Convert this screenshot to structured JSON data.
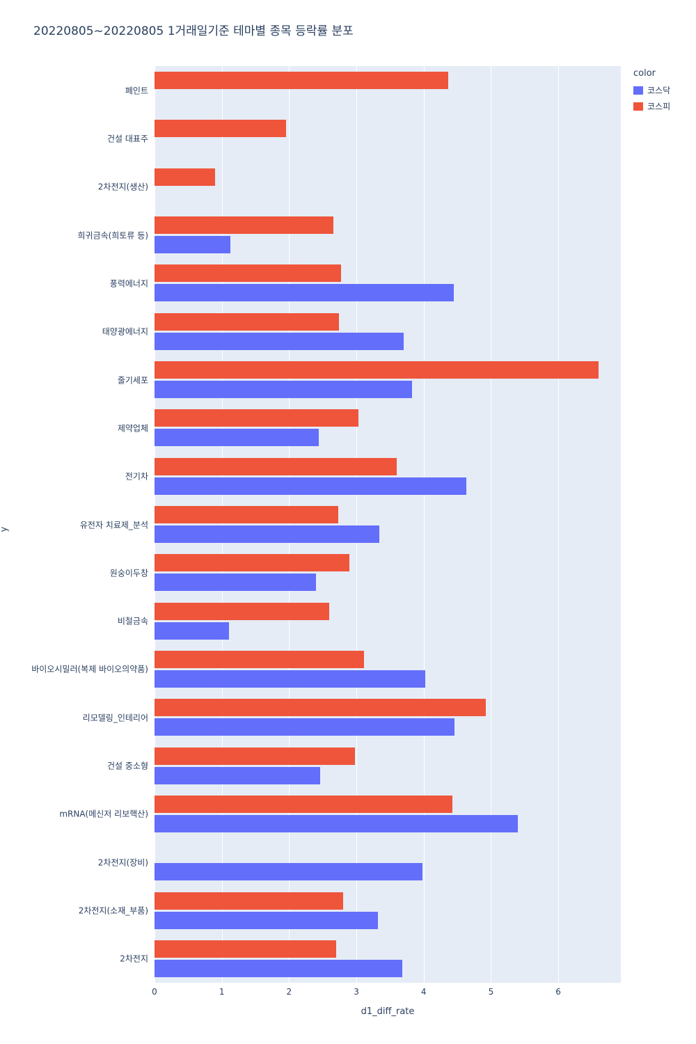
{
  "legend": {
    "title": "color",
    "items": [
      {
        "label": "코스닥",
        "color": "#636efa"
      },
      {
        "label": "코스피",
        "color": "#ef553b"
      }
    ]
  },
  "chart_data": {
    "type": "bar",
    "orientation": "horizontal",
    "title": "20220805~20220805 1거래일기준 테마별 종목 등락률 분포",
    "xlabel": "d1_diff_rate",
    "ylabel": "y",
    "xlim": [
      0,
      6.93
    ],
    "xticks": [
      0,
      1,
      2,
      3,
      4,
      5,
      6
    ],
    "grid": true,
    "legend_position": "top-right",
    "plot_background": "#e5ecf6",
    "categories": [
      "페인트",
      "건설 대표주",
      "2차전지(생산)",
      "희귀금속(희토류 등)",
      "풍력에너지",
      "태양광에너지",
      "줄기세포",
      "제약업체",
      "전기차",
      "유전자 치료제_분석",
      "원숭이두창",
      "비철금속",
      "바이오시밀러(복제 바이오의약품)",
      "리모델링_인테리어",
      "건설 중소형",
      "mRNA(메신저 리보핵산)",
      "2차전지(장비)",
      "2차전지(소재_부품)",
      "2차전지"
    ],
    "series": [
      {
        "name": "코스닥",
        "color": "#636efa",
        "values": [
          null,
          null,
          null,
          1.13,
          4.45,
          3.7,
          3.83,
          2.44,
          4.63,
          3.34,
          2.4,
          1.11,
          4.02,
          4.46,
          2.46,
          5.4,
          3.98,
          3.32,
          3.68
        ]
      },
      {
        "name": "코스피",
        "color": "#ef553b",
        "values": [
          4.37,
          1.95,
          0.9,
          2.66,
          2.77,
          2.74,
          6.6,
          3.03,
          3.6,
          2.73,
          2.9,
          2.6,
          3.11,
          4.92,
          2.98,
          4.43,
          null,
          2.8,
          2.7
        ]
      }
    ]
  }
}
